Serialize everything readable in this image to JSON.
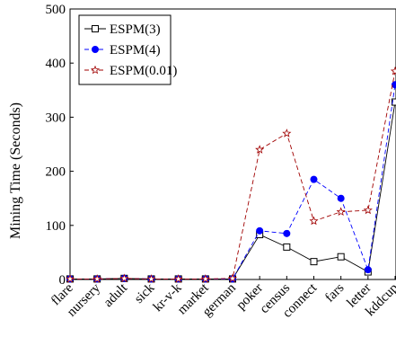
{
  "chart_data": {
    "type": "line",
    "title": "",
    "xlabel": "",
    "ylabel": "Mining Time (Seconds)",
    "ylim": [
      0,
      500
    ],
    "yticks": [
      0,
      100,
      200,
      300,
      400,
      500
    ],
    "grid": false,
    "legend_position": "top-left",
    "categories": [
      "flare",
      "nursery",
      "adult",
      "sick",
      "kr-v-k",
      "market",
      "german",
      "poker",
      "census",
      "connect",
      "fars",
      "letter",
      "kddcup"
    ],
    "series": [
      {
        "name": "ESPM(3)",
        "color": "#000000",
        "marker": "square-open",
        "line": "solid",
        "values": [
          1,
          1,
          2,
          1,
          1,
          1,
          1,
          83,
          60,
          33,
          42,
          14,
          328
        ]
      },
      {
        "name": "ESPM(4)",
        "color": "#0000ff",
        "marker": "circle-filled",
        "line": "dashed",
        "values": [
          1,
          1,
          2,
          1,
          1,
          1,
          1,
          90,
          85,
          185,
          150,
          18,
          360
        ]
      },
      {
        "name": "ESPM(0.01)",
        "color": "#a00000",
        "marker": "star-open",
        "line": "dashed",
        "values": [
          1,
          1,
          2,
          1,
          1,
          1,
          2,
          240,
          270,
          108,
          125,
          128,
          385
        ]
      }
    ]
  }
}
